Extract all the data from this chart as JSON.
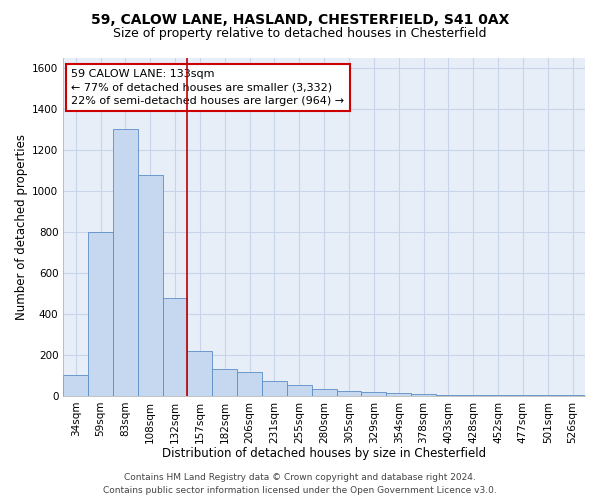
{
  "title1": "59, CALOW LANE, HASLAND, CHESTERFIELD, S41 0AX",
  "title2": "Size of property relative to detached houses in Chesterfield",
  "xlabel": "Distribution of detached houses by size in Chesterfield",
  "ylabel": "Number of detached properties",
  "categories": [
    "34sqm",
    "59sqm",
    "83sqm",
    "108sqm",
    "132sqm",
    "157sqm",
    "182sqm",
    "206sqm",
    "231sqm",
    "255sqm",
    "280sqm",
    "305sqm",
    "329sqm",
    "354sqm",
    "378sqm",
    "403sqm",
    "428sqm",
    "452sqm",
    "477sqm",
    "501sqm",
    "526sqm"
  ],
  "values": [
    100,
    800,
    1300,
    1075,
    475,
    220,
    130,
    115,
    70,
    55,
    35,
    25,
    18,
    14,
    10,
    5,
    4,
    3,
    3,
    3,
    3
  ],
  "bar_color": "#c5d8f0",
  "bar_edge_color": "#5b8dc8",
  "vline_x": 4.5,
  "vline_color": "#bb0000",
  "annotation_text": "59 CALOW LANE: 133sqm\n← 77% of detached houses are smaller (3,332)\n22% of semi-detached houses are larger (964) →",
  "annotation_box_color": "#ffffff",
  "annotation_box_edge": "#cc0000",
  "ylim": [
    0,
    1650
  ],
  "yticks": [
    0,
    200,
    400,
    600,
    800,
    1000,
    1200,
    1400,
    1600
  ],
  "grid_color": "#c8d4e8",
  "bg_color": "#e8eef8",
  "footer1": "Contains HM Land Registry data © Crown copyright and database right 2024.",
  "footer2": "Contains public sector information licensed under the Open Government Licence v3.0.",
  "title1_fontsize": 10,
  "title2_fontsize": 9,
  "xlabel_fontsize": 8.5,
  "ylabel_fontsize": 8.5,
  "tick_fontsize": 7.5,
  "annotation_fontsize": 8,
  "footer_fontsize": 6.5
}
